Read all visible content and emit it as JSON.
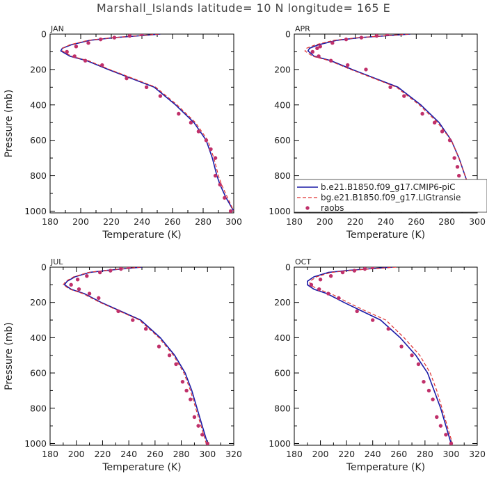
{
  "title": "Marshall_Islands  latitude= 10 N longitude= 165 E",
  "colors": {
    "model_a": "#1a1aa6",
    "model_b": "#e03030",
    "obs": "#c0306a",
    "axis": "#000000"
  },
  "icons": {
    "obs_marker": "filled-circle-marker"
  },
  "chart_data": [
    {
      "type": "line",
      "panel": "JAN",
      "xlabel": "Temperature (K)",
      "ylabel": "Pressure (mb)",
      "xlim": [
        180,
        300
      ],
      "ylim": [
        1010,
        0
      ],
      "y_axis_inverted": true,
      "xticks": [
        180,
        200,
        220,
        240,
        260,
        280,
        300
      ],
      "yticks": [
        0,
        200,
        400,
        600,
        800,
        1000
      ],
      "grid": false,
      "legend": null,
      "series": [
        {
          "style": "solid",
          "color": "#1a1aa6",
          "x": [
            252,
            238,
            222,
            206,
            194,
            188,
            187,
            193,
            204,
            218,
            233,
            248,
            262,
            274,
            282,
            286,
            289,
            291,
            295,
            300
          ],
          "y": [
            0,
            10,
            20,
            35,
            60,
            80,
            95,
            125,
            150,
            200,
            250,
            300,
            400,
            500,
            600,
            700,
            800,
            850,
            925,
            1000
          ]
        },
        {
          "style": "dashed",
          "color": "#e03030",
          "x": [
            251,
            237,
            221,
            205,
            193,
            188,
            188,
            194,
            205,
            219,
            234,
            249,
            263,
            275,
            283,
            287,
            290,
            292,
            296,
            300
          ],
          "y": [
            0,
            10,
            20,
            35,
            60,
            80,
            95,
            125,
            150,
            200,
            250,
            300,
            400,
            500,
            600,
            700,
            800,
            850,
            925,
            1000
          ]
        },
        {
          "style": "points",
          "color": "#c0306a",
          "x": [
            240,
            232,
            222,
            213,
            205,
            197,
            191,
            196,
            203,
            214,
            230,
            243,
            252,
            264,
            272,
            277,
            282,
            285,
            288,
            288,
            291,
            294,
            298
          ],
          "y": [
            0,
            10,
            20,
            30,
            50,
            70,
            100,
            125,
            150,
            175,
            250,
            300,
            350,
            450,
            500,
            550,
            600,
            650,
            700,
            800,
            850,
            925,
            1000
          ]
        }
      ]
    },
    {
      "type": "line",
      "panel": "APR",
      "xlabel": "Temperature (K)",
      "ylabel": "",
      "xlim": [
        180,
        300
      ],
      "ylim": [
        1010,
        0
      ],
      "y_axis_inverted": true,
      "xticks": [
        180,
        200,
        220,
        240,
        260,
        280,
        300
      ],
      "yticks": [
        0,
        200,
        400,
        600,
        800,
        1000
      ],
      "grid": false,
      "legend": {
        "placement": "right-middle",
        "entries": [
          {
            "label": "b.e21.B1850.f09_g17.CMIP6-piC",
            "style": "solid",
            "color": "#1a1aa6"
          },
          {
            "label": "bg.e21.B1850.f09_g17.LIGtransie",
            "style": "dashed",
            "color": "#e03030"
          },
          {
            "label": "raobs",
            "style": "points",
            "color": "#c0306a"
          }
        ]
      },
      "series": [
        {
          "style": "solid",
          "color": "#1a1aa6",
          "x": [
            256,
            240,
            223,
            208,
            196,
            190,
            189,
            193,
            204,
            218,
            233,
            248,
            263,
            275,
            283,
            288,
            292,
            296,
            300
          ],
          "y": [
            0,
            10,
            20,
            35,
            60,
            80,
            95,
            125,
            150,
            200,
            250,
            300,
            400,
            500,
            600,
            700,
            800,
            900,
            1000
          ]
        },
        {
          "style": "dashed",
          "color": "#e03030",
          "x": [
            255,
            239,
            222,
            206,
            194,
            188,
            187,
            192,
            203,
            217,
            232,
            247,
            262,
            274,
            283,
            288,
            292,
            296,
            300
          ],
          "y": [
            0,
            10,
            20,
            35,
            60,
            80,
            95,
            125,
            150,
            200,
            250,
            300,
            400,
            500,
            600,
            700,
            800,
            900,
            1000
          ]
        },
        {
          "style": "points",
          "color": "#c0306a",
          "x": [
            241,
            234,
            224,
            214,
            205,
            197,
            195,
            192,
            196,
            204,
            215,
            227,
            243,
            252,
            264,
            272,
            277,
            282,
            285,
            287,
            288,
            291
          ],
          "y": [
            0,
            10,
            20,
            30,
            50,
            70,
            80,
            100,
            125,
            150,
            175,
            200,
            300,
            350,
            450,
            500,
            550,
            600,
            700,
            750,
            800,
            900
          ]
        }
      ]
    },
    {
      "type": "line",
      "panel": "JUL",
      "xlabel": "Temperature (K)",
      "ylabel": "Pressure (mb)",
      "xlim": [
        180,
        320
      ],
      "ylim": [
        1010,
        0
      ],
      "y_axis_inverted": true,
      "xticks": [
        180,
        200,
        220,
        240,
        260,
        280,
        300,
        320
      ],
      "yticks": [
        0,
        200,
        400,
        600,
        800,
        1000
      ],
      "grid": false,
      "legend": null,
      "series": [
        {
          "style": "solid",
          "color": "#1a1aa6",
          "x": [
            250,
            238,
            224,
            210,
            199,
            193,
            191,
            196,
            206,
            219,
            234,
            249,
            264,
            275,
            283,
            288,
            292,
            296,
            300
          ],
          "y": [
            0,
            8,
            18,
            30,
            55,
            80,
            100,
            125,
            150,
            200,
            250,
            300,
            400,
            500,
            600,
            700,
            800,
            900,
            1000
          ]
        },
        {
          "style": "dashed",
          "color": "#e03030",
          "x": [
            249,
            237,
            223,
            209,
            198,
            192,
            190,
            195,
            205,
            218,
            233,
            248,
            263,
            274,
            282,
            287,
            291,
            295,
            299
          ],
          "y": [
            0,
            8,
            18,
            30,
            55,
            80,
            100,
            125,
            150,
            200,
            250,
            300,
            400,
            500,
            600,
            700,
            800,
            900,
            1000
          ]
        },
        {
          "style": "points",
          "color": "#c0306a",
          "x": [
            240,
            234,
            226,
            218,
            208,
            201,
            196,
            202,
            210,
            217,
            232,
            243,
            253,
            263,
            271,
            276,
            281,
            284,
            287,
            290,
            293,
            296,
            300
          ],
          "y": [
            0,
            10,
            20,
            30,
            50,
            70,
            100,
            125,
            150,
            175,
            250,
            300,
            350,
            450,
            500,
            550,
            650,
            700,
            750,
            850,
            900,
            950,
            1000
          ]
        }
      ]
    },
    {
      "type": "line",
      "panel": "OCT",
      "xlabel": "Temperature (K)",
      "ylabel": "",
      "xlim": [
        180,
        320
      ],
      "ylim": [
        1010,
        0
      ],
      "y_axis_inverted": true,
      "xticks": [
        180,
        200,
        220,
        240,
        260,
        280,
        300,
        320
      ],
      "yticks": [
        0,
        200,
        400,
        600,
        800,
        1000
      ],
      "grid": false,
      "legend": null,
      "series": [
        {
          "style": "solid",
          "color": "#1a1aa6",
          "x": [
            255,
            240,
            222,
            206,
            195,
            190,
            190,
            195,
            205,
            218,
            232,
            246,
            261,
            273,
            282,
            287,
            292,
            296,
            300
          ],
          "y": [
            0,
            8,
            18,
            30,
            55,
            80,
            100,
            125,
            150,
            200,
            250,
            300,
            400,
            500,
            600,
            700,
            800,
            900,
            1000
          ]
        },
        {
          "style": "dashed",
          "color": "#e03030",
          "x": [
            258,
            242,
            224,
            208,
            197,
            192,
            192,
            198,
            208,
            221,
            235,
            250,
            264,
            276,
            284,
            289,
            293,
            297,
            301
          ],
          "y": [
            0,
            8,
            18,
            30,
            55,
            80,
            100,
            125,
            150,
            200,
            250,
            300,
            400,
            500,
            600,
            700,
            800,
            900,
            1000
          ]
        },
        {
          "style": "points",
          "color": "#c0306a",
          "x": [
            240,
            234,
            226,
            217,
            208,
            200,
            193,
            199,
            206,
            214,
            228,
            240,
            252,
            262,
            270,
            275,
            279,
            283,
            286,
            289,
            292,
            296,
            300
          ],
          "y": [
            0,
            10,
            20,
            30,
            50,
            70,
            100,
            125,
            150,
            175,
            250,
            300,
            350,
            450,
            500,
            550,
            650,
            700,
            750,
            850,
            900,
            950,
            1000
          ]
        }
      ]
    }
  ]
}
